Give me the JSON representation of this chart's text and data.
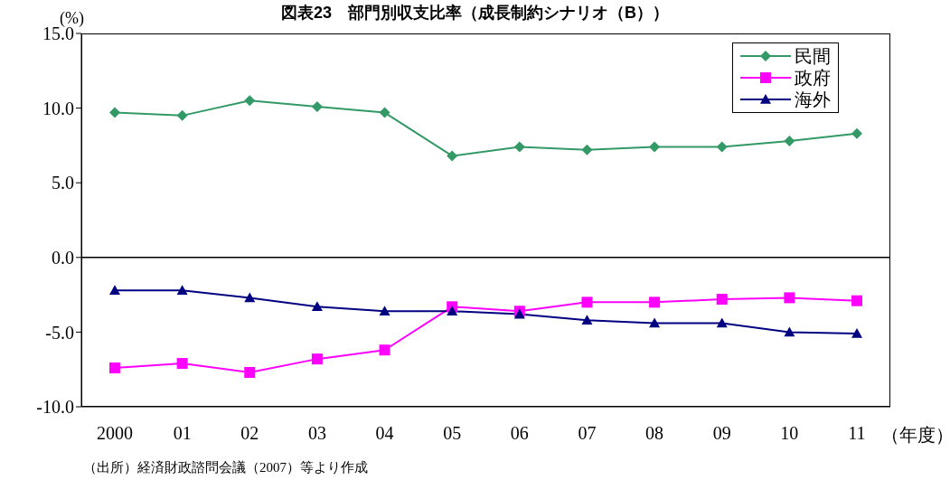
{
  "chart_data": {
    "type": "line",
    "title": "図表23　部門別収支比率（成長制約シナリオ（B））",
    "ylabel": "(%)",
    "xlabel": "（年度）",
    "annotations": [
      "（出所）経済財政諮問会議（2007）等より作成"
    ],
    "categories": [
      "2000",
      "01",
      "02",
      "03",
      "04",
      "05",
      "06",
      "07",
      "08",
      "09",
      "10",
      "11"
    ],
    "series": [
      {
        "name": "民間",
        "color": "#339966",
        "marker": "diamond",
        "values": [
          9.7,
          9.5,
          10.5,
          10.1,
          9.7,
          6.8,
          7.4,
          7.2,
          7.4,
          7.4,
          7.8,
          8.3
        ]
      },
      {
        "name": "政府",
        "color": "#ff00ff",
        "marker": "square",
        "values": [
          -7.4,
          -7.1,
          -7.7,
          -6.8,
          -6.2,
          -3.3,
          -3.6,
          -3.0,
          -3.0,
          -2.8,
          -2.7,
          -2.9
        ]
      },
      {
        "name": "海外",
        "color": "#000080",
        "marker": "triangle",
        "values": [
          -2.2,
          -2.2,
          -2.7,
          -3.3,
          -3.6,
          -3.6,
          -3.8,
          -4.2,
          -4.4,
          -4.4,
          -5.0,
          -5.1
        ]
      }
    ],
    "ylim": [
      -10,
      15
    ],
    "yticks": [
      {
        "value": -10,
        "label": "-10.0"
      },
      {
        "value": -5,
        "label": "-5.0"
      },
      {
        "value": 0,
        "label": "0.0"
      },
      {
        "value": 5,
        "label": "5.0"
      },
      {
        "value": 10,
        "label": "10.0"
      },
      {
        "value": 15,
        "label": "15.0"
      }
    ],
    "ref_lines": [
      {
        "axis": "y",
        "value": 0,
        "color": "#000000"
      }
    ],
    "grid": false,
    "legend": "top right"
  }
}
